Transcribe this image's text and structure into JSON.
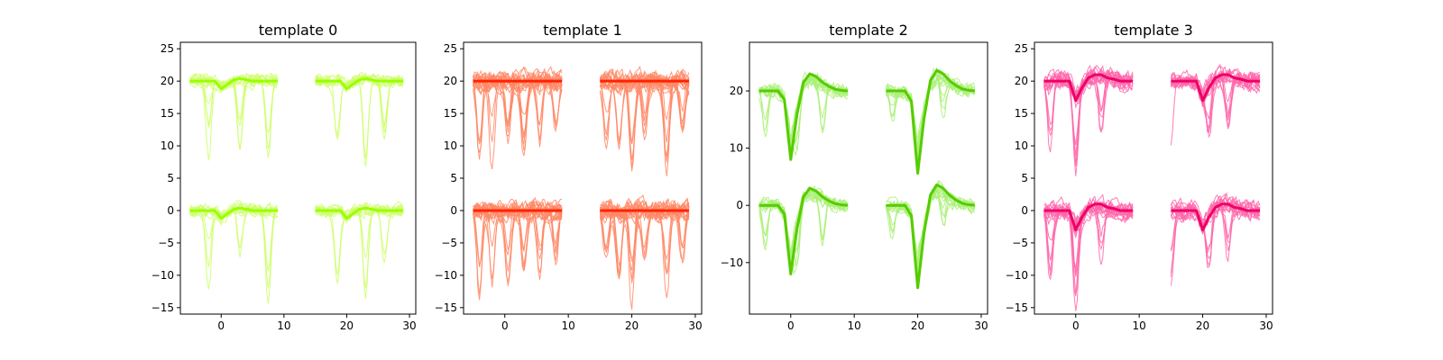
{
  "chart_data": [
    {
      "type": "line",
      "title": "template 0",
      "color": "#99ff00",
      "light_color": "#ccff66",
      "xlim": [
        -6.5,
        31
      ],
      "ylim": [
        -16,
        26
      ],
      "xticks": [
        0,
        10,
        20,
        30
      ],
      "yticks": [
        -15,
        -10,
        -5,
        0,
        5,
        10,
        15,
        20,
        25
      ],
      "channel_offsets": [
        20,
        0
      ],
      "segments": [
        {
          "x_start": -5,
          "x_end": 9
        },
        {
          "x_start": 15,
          "x_end": 29
        }
      ],
      "mean_waveform": {
        "x": [
          -5,
          -4,
          -3,
          -2,
          -1,
          0,
          1,
          2,
          3,
          4,
          5,
          6,
          7,
          8,
          9
        ],
        "values": [
          0,
          0,
          0,
          0,
          0,
          -1.2,
          -0.5,
          0.2,
          0.4,
          0.2,
          0,
          0,
          0,
          0,
          0
        ]
      },
      "noise_trace_count": 12,
      "noise_amplitude": 1.2,
      "dips": [
        {
          "x": -2,
          "depth": -11.5
        },
        {
          "x": 3,
          "depth": -11
        },
        {
          "x": 7.5,
          "depth": -14.5
        },
        {
          "x": 18.5,
          "depth": -14
        },
        {
          "x": 23,
          "depth": -13.5
        },
        {
          "x": 26,
          "depth": -9
        }
      ]
    },
    {
      "type": "line",
      "title": "template 1",
      "color": "#ff2200",
      "light_color": "#ff8866",
      "xlim": [
        -6.5,
        31
      ],
      "ylim": [
        -16,
        26
      ],
      "xticks": [
        0,
        10,
        20,
        30
      ],
      "yticks": [
        -15,
        -10,
        -5,
        0,
        5,
        10,
        15,
        20,
        25
      ],
      "channel_offsets": [
        20,
        0
      ],
      "segments": [
        {
          "x_start": -5,
          "x_end": 9
        },
        {
          "x_start": 15,
          "x_end": 29
        }
      ],
      "mean_waveform": {
        "x": [
          -5,
          -4,
          -3,
          -2,
          -1,
          0,
          1,
          2,
          3,
          4,
          5,
          6,
          7,
          8,
          9
        ],
        "values": [
          0,
          0,
          0,
          0,
          0,
          0,
          0,
          0,
          0,
          0,
          0,
          0,
          0,
          0,
          0
        ]
      },
      "noise_trace_count": 20,
      "noise_amplitude": 2.0,
      "dips": [
        {
          "x": -4,
          "depth": -14
        },
        {
          "x": -2,
          "depth": -14
        },
        {
          "x": 0.5,
          "depth": -11.5
        },
        {
          "x": 3,
          "depth": -11
        },
        {
          "x": 5.5,
          "depth": -11
        },
        {
          "x": 8,
          "depth": -8
        },
        {
          "x": 16,
          "depth": -9
        },
        {
          "x": 18,
          "depth": -11
        },
        {
          "x": 20,
          "depth": -14
        },
        {
          "x": 22,
          "depth": -9
        },
        {
          "x": 25.5,
          "depth": -14
        },
        {
          "x": 28,
          "depth": -8
        }
      ]
    },
    {
      "type": "line",
      "title": "template 2",
      "color": "#55cc00",
      "light_color": "#aaf077",
      "xlim": [
        -6.5,
        31
      ],
      "ylim": [
        -19,
        28.5
      ],
      "xticks": [
        0,
        10,
        20,
        30
      ],
      "yticks": [
        -10,
        0,
        10,
        20
      ],
      "channel_offsets": [
        20,
        0
      ],
      "segments": [
        {
          "x_start": -5,
          "x_end": 9
        },
        {
          "x_start": 15,
          "x_end": 29
        }
      ],
      "mean_waveform": {
        "x": [
          -5,
          -4,
          -3,
          -2,
          -1,
          0,
          1,
          2,
          3,
          4,
          5,
          6,
          7,
          8,
          9
        ],
        "values": [
          0,
          0,
          0,
          0,
          -1.5,
          -12,
          -4,
          1.5,
          3,
          2.5,
          1.5,
          0.8,
          0.3,
          0.1,
          0
        ]
      },
      "second_segment_scale": 1.2,
      "noise_trace_count": 14,
      "noise_amplitude": 1.5,
      "dips": [
        {
          "x": -4,
          "depth": -8
        },
        {
          "x": 1,
          "depth": -8
        },
        {
          "x": 5,
          "depth": -9
        },
        {
          "x": 16,
          "depth": -6
        },
        {
          "x": 24,
          "depth": -6
        }
      ]
    },
    {
      "type": "line",
      "title": "template 3",
      "color": "#ee0066",
      "light_color": "#ff66aa",
      "xlim": [
        -6.5,
        31
      ],
      "ylim": [
        -16,
        26
      ],
      "xticks": [
        0,
        10,
        20,
        30
      ],
      "yticks": [
        -15,
        -10,
        -5,
        0,
        5,
        10,
        15,
        20,
        25
      ],
      "channel_offsets": [
        20,
        0
      ],
      "segments": [
        {
          "x_start": -5,
          "x_end": 9
        },
        {
          "x_start": 15,
          "x_end": 29
        }
      ],
      "mean_waveform": {
        "x": [
          -5,
          -4,
          -3,
          -2,
          -1,
          0,
          1,
          2,
          3,
          4,
          5,
          6,
          7,
          8,
          9
        ],
        "values": [
          0,
          0,
          0,
          0,
          0,
          -3,
          -1,
          0.5,
          1,
          1,
          0.5,
          0.3,
          0,
          0,
          0
        ]
      },
      "noise_trace_count": 16,
      "noise_amplitude": 1.8,
      "dips": [
        {
          "x": -4,
          "depth": -11
        },
        {
          "x": 0,
          "depth": -13
        },
        {
          "x": 4,
          "depth": -9
        },
        {
          "x": 15,
          "depth": -12
        },
        {
          "x": 21,
          "depth": -8
        },
        {
          "x": 24,
          "depth": -8
        }
      ]
    }
  ]
}
